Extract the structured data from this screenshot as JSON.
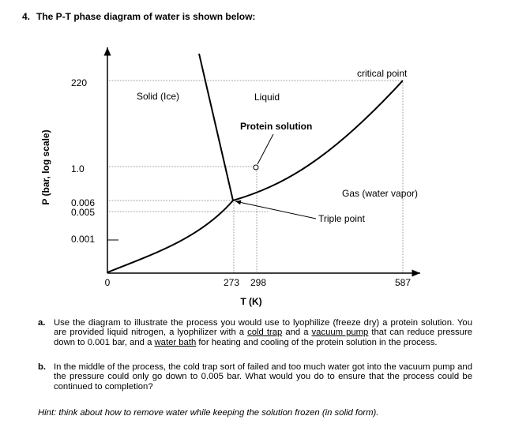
{
  "question": {
    "number": "4.",
    "text": "The P-T phase diagram of water is shown below:"
  },
  "diagram": {
    "y_axis_label": "P (bar, log scale)",
    "x_axis_label": "T (K)",
    "yticks": [
      "220",
      "1.0",
      "0.006",
      "0.005",
      "0.001"
    ],
    "xticks": [
      "0",
      "273",
      "298",
      "587"
    ],
    "regions": [
      "Solid (Ice)",
      "Liquid",
      "Gas (water vapor)"
    ],
    "annotations": [
      "critical point",
      "Protein solution",
      "Triple point"
    ]
  },
  "parts": [
    {
      "label": "a.",
      "segments": [
        {
          "text": "Use the diagram to illustrate the process you would use to lyophilize (freeze dry) a protein solution. You are provided liquid nitrogen, a lyophilizer with a "
        },
        {
          "text": "cold trap",
          "underline": true
        },
        {
          "text": " and a "
        },
        {
          "text": "vacuum pump",
          "underline": true
        },
        {
          "text": " that can reduce pressure down to 0.001 bar, and a "
        },
        {
          "text": "water bath",
          "underline": true
        },
        {
          "text": " for heating and cooling of the protein solution in the process."
        }
      ]
    },
    {
      "label": "b.",
      "segments": [
        {
          "text": "In the middle of the process, the cold trap sort of failed and too much water got into the vacuum pump and the pressure could only go down to 0.005 bar. What would you do to ensure that the process could be continued to completion?"
        }
      ]
    }
  ],
  "hint": "Hint: think about how to remove water while keeping the solution frozen (in solid form)."
}
